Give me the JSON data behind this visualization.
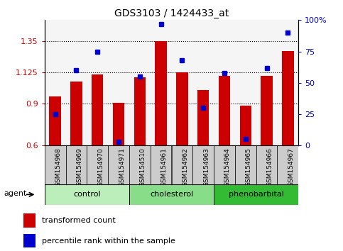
{
  "title": "GDS3103 / 1424433_at",
  "samples": [
    "GSM154968",
    "GSM154969",
    "GSM154970",
    "GSM154971",
    "GSM154510",
    "GSM154961",
    "GSM154962",
    "GSM154963",
    "GSM154964",
    "GSM154965",
    "GSM154966",
    "GSM154967"
  ],
  "red_values": [
    0.955,
    1.06,
    1.11,
    0.905,
    1.09,
    1.35,
    1.125,
    1.0,
    1.1,
    0.885,
    1.1,
    1.28
  ],
  "blue_values": [
    25,
    60,
    75,
    3,
    55,
    97,
    68,
    30,
    58,
    5,
    62,
    90
  ],
  "ylim_left": [
    0.6,
    1.5
  ],
  "ylim_right": [
    0,
    100
  ],
  "yticks_left": [
    0.6,
    0.9,
    1.125,
    1.35
  ],
  "ytick_labels_left": [
    "0.6",
    "0.9",
    "1.125",
    "1.35"
  ],
  "ytick_labels_right": [
    "0",
    "25",
    "50",
    "75",
    "100%"
  ],
  "yticks_right": [
    0,
    25,
    50,
    75,
    100
  ],
  "hlines": [
    0.9,
    1.125,
    1.35
  ],
  "groups": [
    {
      "label": "control",
      "start": 0,
      "end": 4,
      "color": "#bbeebb"
    },
    {
      "label": "cholesterol",
      "start": 4,
      "end": 8,
      "color": "#88dd88"
    },
    {
      "label": "phenobarbital",
      "start": 8,
      "end": 12,
      "color": "#33bb33"
    }
  ],
  "bar_color": "#cc0000",
  "dot_color": "#0000cc",
  "bar_bottom": 0.6,
  "legend_labels": [
    "transformed count",
    "percentile rank within the sample"
  ],
  "agent_label": "agent",
  "xtick_bg": "#cccccc",
  "plot_bg": "#f5f5f5"
}
